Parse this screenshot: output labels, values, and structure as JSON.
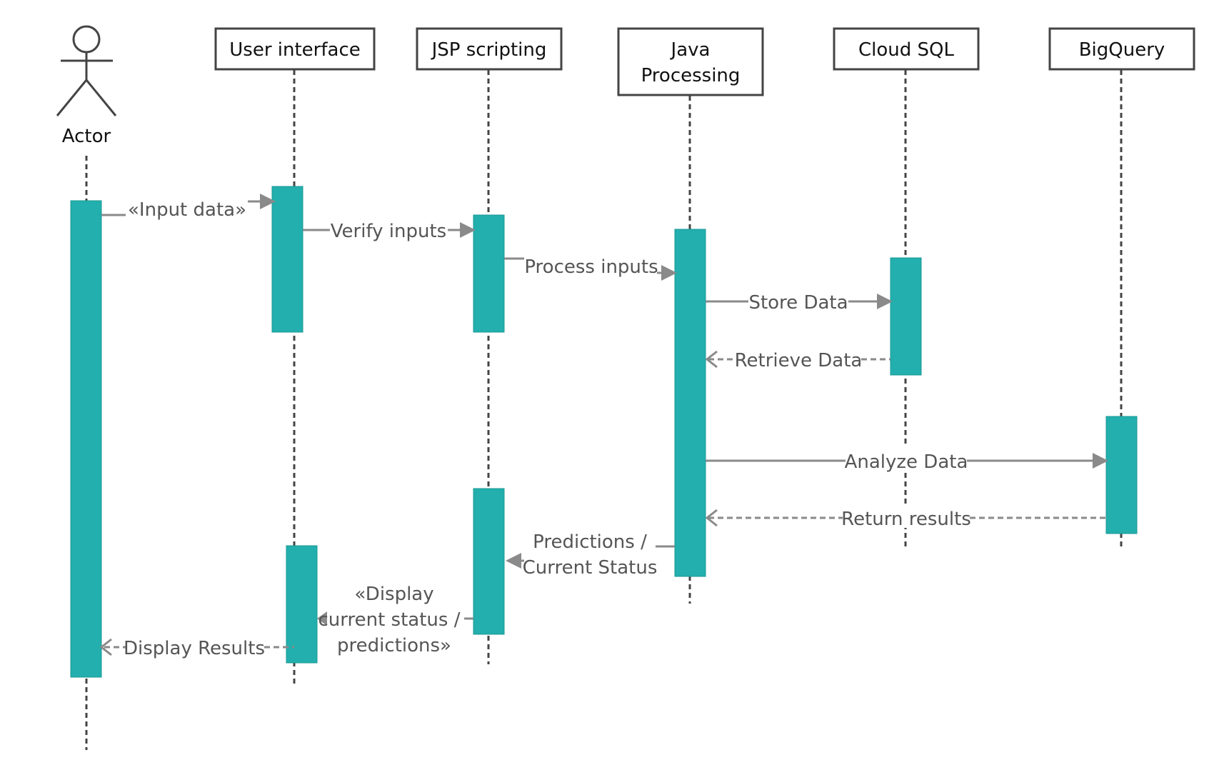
{
  "actor": {
    "label": "Actor"
  },
  "participants": [
    {
      "id": "ui",
      "label": "User interface"
    },
    {
      "id": "jsp",
      "label": "JSP scripting"
    },
    {
      "id": "java",
      "label_lines": [
        "Java",
        "Processing"
      ]
    },
    {
      "id": "sql",
      "label": "Cloud SQL"
    },
    {
      "id": "bq",
      "label": "BigQuery"
    }
  ],
  "messages": [
    {
      "id": "input",
      "kind": "sync",
      "lines": [
        "«Input data»"
      ]
    },
    {
      "id": "verify",
      "kind": "sync",
      "lines": [
        "Verify inputs"
      ]
    },
    {
      "id": "process",
      "kind": "sync",
      "lines": [
        "Process inputs"
      ]
    },
    {
      "id": "store",
      "kind": "sync",
      "lines": [
        "Store Data"
      ]
    },
    {
      "id": "retrieve",
      "kind": "reply",
      "lines": [
        "Retrieve Data"
      ]
    },
    {
      "id": "analyze",
      "kind": "sync",
      "lines": [
        "Analyze Data"
      ]
    },
    {
      "id": "return",
      "kind": "reply",
      "lines": [
        "Return results"
      ]
    },
    {
      "id": "predictions",
      "kind": "sync",
      "lines": [
        "Predictions /",
        "Current Status"
      ]
    },
    {
      "id": "display",
      "kind": "sync",
      "lines": [
        "«Display",
        "current status /",
        "predictions»"
      ]
    },
    {
      "id": "results",
      "kind": "reply",
      "lines": [
        "Display Results"
      ]
    }
  ],
  "colors": {
    "activation": "#22afad",
    "message_arrow": "#8a8a8a",
    "lifeline": "#444444",
    "participant_border": "#444444"
  }
}
